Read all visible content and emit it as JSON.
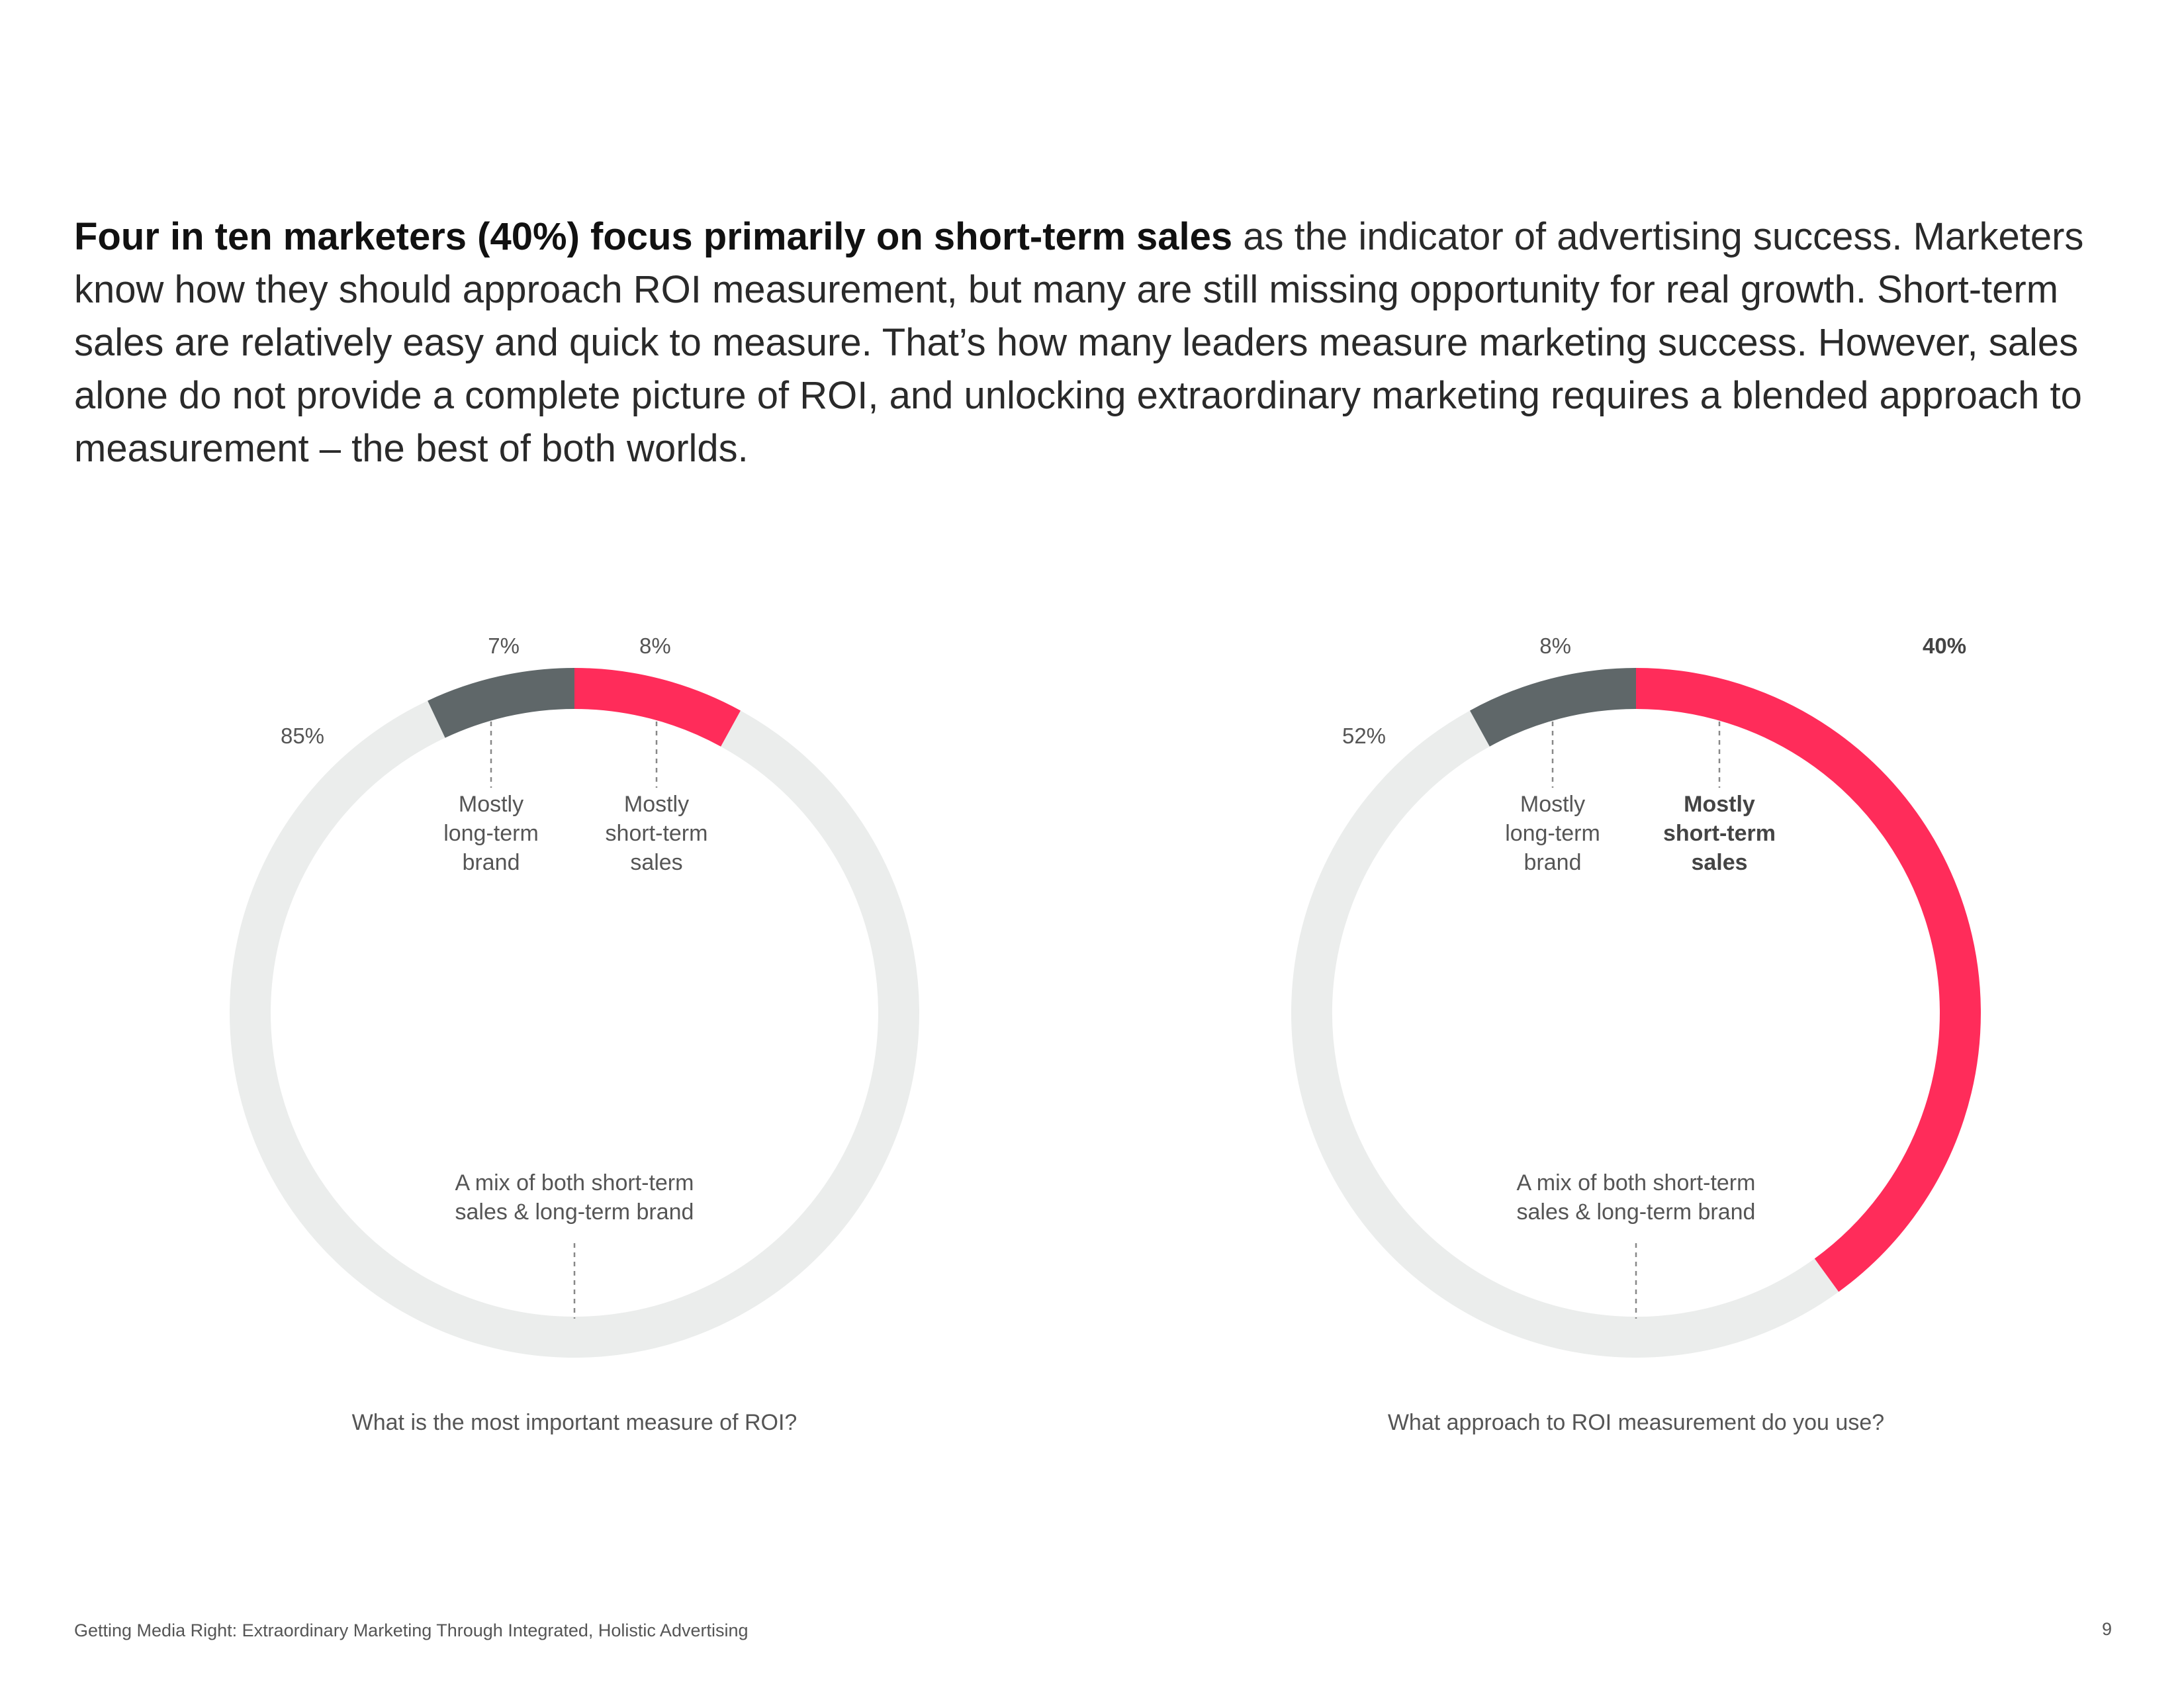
{
  "intro": {
    "lead_bold": "Four in ten marketers (40%) focus primarily on short-term sales",
    "rest": " as the indicator of advertising success. Marketers know how they should approach ROI measurement, but many are still missing opportunity for real growth. Short-term sales are relatively easy and quick to measure. That’s how many leaders measure marketing success. However, sales alone do not provide a complete picture of ROI, and unlocking extraordinary marketing requires a blended approach to measurement – the best of both worlds."
  },
  "colors": {
    "long_term": "#5f6769",
    "short_term": "#ff2c5a",
    "mix": "#ebedec",
    "text": "#555555",
    "leader": "#888888"
  },
  "chart_data": [
    {
      "type": "pie",
      "style": "donut",
      "title": "What is the most important measure of ROI?",
      "slices": [
        {
          "label": "Mostly long-term brand",
          "value": 7,
          "value_label": "7%",
          "color": "#5f6769",
          "emphasis": false
        },
        {
          "label": "Mostly short-term sales",
          "value": 8,
          "value_label": "8%",
          "color": "#ff2c5a",
          "emphasis": false
        },
        {
          "label": "A mix of both short-term sales & long-term brand",
          "value": 85,
          "value_label": "85%",
          "color": "#ebedec",
          "emphasis": false
        }
      ],
      "category_labels": {
        "long_term": [
          "Mostly",
          "long-term",
          "brand"
        ],
        "short_term": [
          "Mostly",
          "short-term",
          "sales"
        ],
        "mix": [
          "A mix of both short-term",
          "sales & long-term brand"
        ]
      }
    },
    {
      "type": "pie",
      "style": "donut",
      "title": "What approach to ROI measurement do you use?",
      "slices": [
        {
          "label": "Mostly long-term brand",
          "value": 8,
          "value_label": "8%",
          "color": "#5f6769",
          "emphasis": false
        },
        {
          "label": "Mostly short-term sales",
          "value": 40,
          "value_label": "40%",
          "color": "#ff2c5a",
          "emphasis": true
        },
        {
          "label": "A mix of both short-term sales & long-term brand",
          "value": 52,
          "value_label": "52%",
          "color": "#ebedec",
          "emphasis": false
        }
      ],
      "category_labels": {
        "long_term": [
          "Mostly",
          "long-term",
          "brand"
        ],
        "short_term": [
          "Mostly",
          "short-term",
          "sales"
        ],
        "mix": [
          "A mix of both short-term",
          "sales & long-term brand"
        ]
      }
    }
  ],
  "footer": {
    "title": "Getting Media Right: Extraordinary Marketing Through Integrated, Holistic Advertising",
    "page": "9"
  }
}
